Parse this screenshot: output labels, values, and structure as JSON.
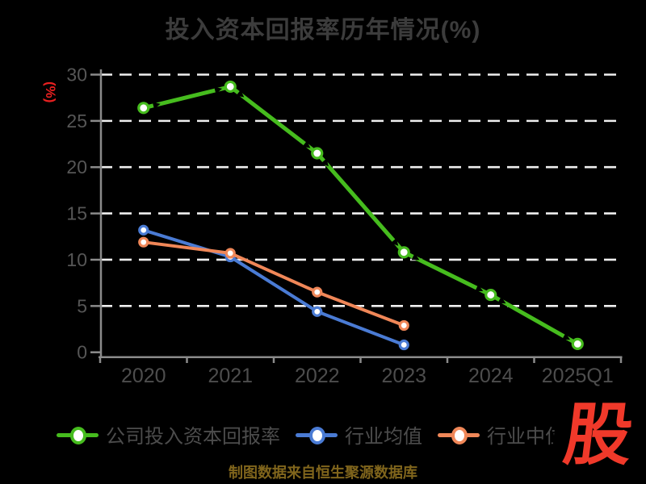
{
  "title": "投入资本回报率历年情况(%)",
  "y_axis_unit_label": "(%)",
  "caption": "制图数据来自恒生聚源数据库",
  "watermark_glyph": "股",
  "colors": {
    "background": "#000000",
    "title_text": "#3c3c3c",
    "axis_line": "#8b8b8b",
    "y_tick_text": "#565656",
    "x_tick_text": "#4d4d4d",
    "gridline": "#efefef",
    "legend_text": "#4c4c4c",
    "unit_label_red": "#e82020",
    "watermark_red": "#f0392a",
    "caption_gold": "#80651c",
    "series_company_green": "#46bc1e",
    "series_mean_blue": "#4a7bd4",
    "series_median_orange": "#f08758"
  },
  "legend": {
    "items": [
      {
        "label": "公司投入资本回报率",
        "color": "#46bc1e"
      },
      {
        "label": "行业均值",
        "color": "#4a7bd4"
      },
      {
        "label": "行业中位数",
        "color": "#f08758"
      }
    ]
  },
  "chart_data": {
    "type": "line",
    "title": "投入资本回报率历年情况(%)",
    "categories": [
      "2020",
      "2021",
      "2022",
      "2023",
      "2024",
      "2025Q1"
    ],
    "series": [
      {
        "name": "公司投入资本回报率",
        "color": "#46bc1e",
        "line_width": 5,
        "marker": "white-filled-circle",
        "arrow_notches": true,
        "values": [
          26.4,
          28.7,
          21.5,
          10.8,
          6.2,
          0.9
        ]
      },
      {
        "name": "行业均值",
        "color": "#4a7bd4",
        "line_width": 4,
        "marker": "white-filled-circle",
        "arrow_notches": false,
        "values": [
          13.2,
          10.3,
          4.4,
          0.8
        ]
      },
      {
        "name": "行业中位数",
        "color": "#f08758",
        "line_width": 4,
        "marker": "white-filled-circle",
        "arrow_notches": false,
        "values": [
          11.9,
          10.7,
          6.5,
          2.9
        ]
      }
    ],
    "xlabel": "",
    "ylabel": "(%)",
    "ylim": [
      0,
      30
    ],
    "ytick_step": 5,
    "grid": "horizontal-dashed-white",
    "legend_position": "bottom"
  }
}
